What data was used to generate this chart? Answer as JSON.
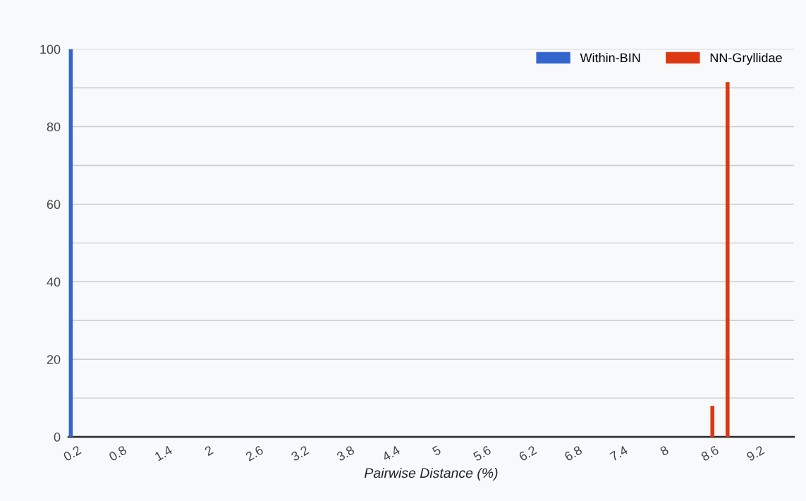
{
  "chart_data": {
    "type": "bar",
    "xlabel": "Pairwise Distance (%)",
    "categories": [
      "0.2",
      null,
      null,
      "0.8",
      null,
      null,
      "1.4",
      null,
      null,
      "2",
      null,
      null,
      "2.6",
      null,
      null,
      "3.2",
      null,
      null,
      "3.8",
      null,
      null,
      "4.4",
      null,
      null,
      "5",
      null,
      null,
      "5.6",
      null,
      null,
      "6.2",
      null,
      null,
      "6.8",
      null,
      null,
      "7.4",
      null,
      null,
      "8",
      null,
      null,
      "8.6",
      null,
      null,
      "9.2",
      null,
      null
    ],
    "series": [
      {
        "name": "Within-BIN",
        "color": "#3366cc",
        "values": [
          100,
          0,
          0,
          0,
          0,
          0,
          0,
          0,
          0,
          0,
          0,
          0,
          0,
          0,
          0,
          0,
          0,
          0,
          0,
          0,
          0,
          0,
          0,
          0,
          0,
          0,
          0,
          0,
          0,
          0,
          0,
          0,
          0,
          0,
          0,
          0,
          0,
          0,
          0,
          0,
          0,
          0,
          0,
          0,
          0,
          0,
          0,
          0
        ]
      },
      {
        "name": "NN-Gryllidae",
        "color": "#dc3912",
        "values": [
          0,
          0,
          0,
          0,
          0,
          0,
          0,
          0,
          0,
          0,
          0,
          0,
          0,
          0,
          0,
          0,
          0,
          0,
          0,
          0,
          0,
          0,
          0,
          0,
          0,
          0,
          0,
          0,
          0,
          0,
          0,
          0,
          0,
          0,
          0,
          0,
          0,
          0,
          0,
          0,
          0,
          0,
          8,
          91.5,
          0,
          0,
          0,
          0
        ]
      }
    ],
    "ylim": [
      0,
      100
    ],
    "yticks": [
      0,
      {
        "value": 10,
        "label": null
      },
      20,
      {
        "value": 30,
        "label": null
      },
      40,
      {
        "value": 50,
        "label": null
      },
      60,
      {
        "value": 70,
        "label": null
      },
      80,
      {
        "value": 90,
        "label": null
      },
      100
    ],
    "grid": "y",
    "legend": "top right"
  }
}
